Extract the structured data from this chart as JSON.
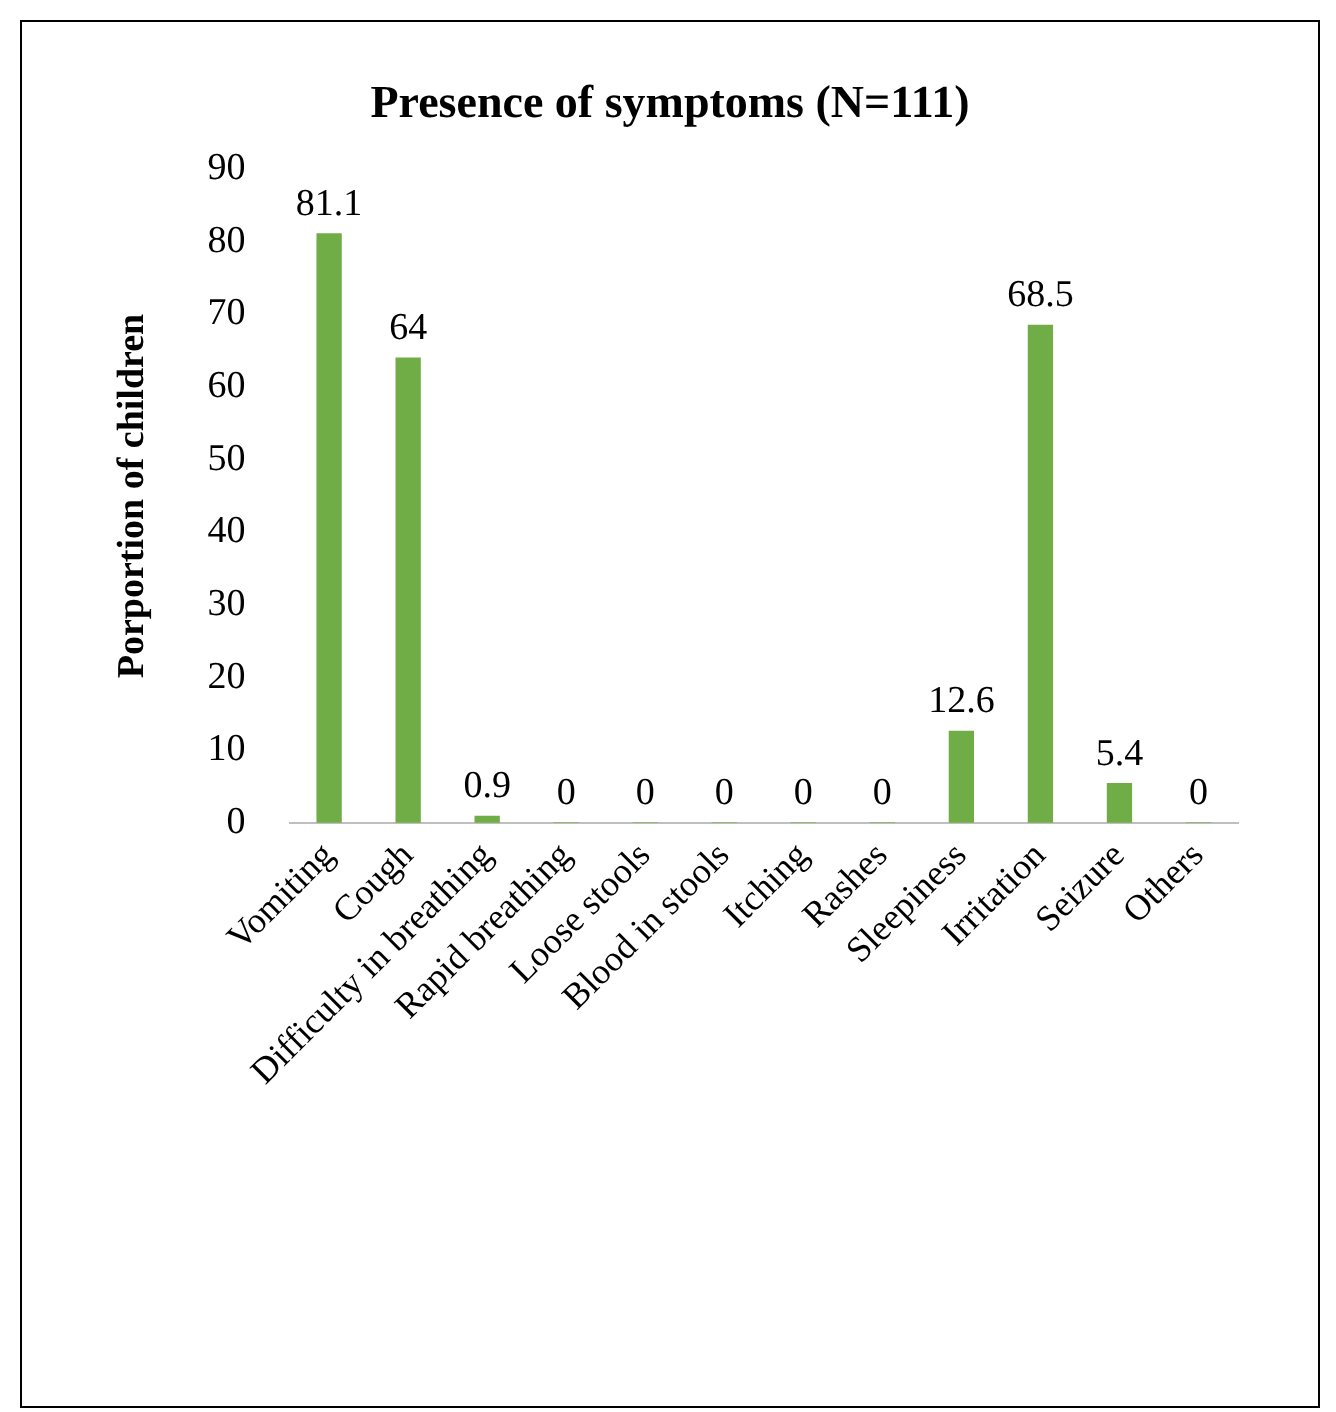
{
  "chart_data": {
    "type": "bar",
    "title": "Presence of symptoms (N=111)",
    "ylabel": "Porportion of children",
    "categories": [
      "Vomiting",
      "Cough",
      "Difficulty in breathing",
      "Rapid breathing",
      "Loose stools",
      "Blood in stools",
      "Itching",
      "Rashes",
      "Sleepiness",
      "Irritation",
      "Seizure",
      "Others"
    ],
    "values": [
      81.1,
      64,
      0.9,
      0,
      0,
      0,
      0,
      0,
      12.6,
      68.5,
      5.4,
      0
    ],
    "color": "#70ad47",
    "ylim": [
      0,
      90
    ],
    "yticks": [
      0,
      10,
      20,
      30,
      40,
      50,
      60,
      70,
      80,
      90
    ],
    "grid": false,
    "legend": false,
    "data_labels": true
  }
}
